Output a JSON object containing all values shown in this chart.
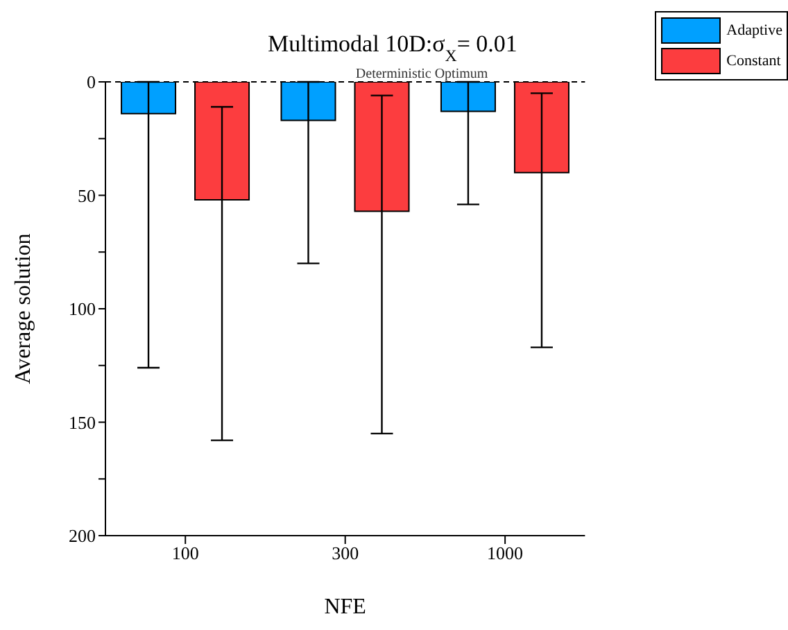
{
  "chart_data": {
    "type": "bar",
    "title": "Multimodal 10D:σ$_{X}$= 0.01",
    "xlabel": "NFE",
    "ylabel": "Average solution",
    "categories": [
      "100",
      "300",
      "1000"
    ],
    "series": [
      {
        "name": "Adaptive",
        "color": "#00a0ff",
        "values": [
          14,
          17,
          13
        ],
        "errors": [
          [
            0,
            126
          ],
          [
            0,
            80
          ],
          [
            0,
            54
          ]
        ]
      },
      {
        "name": "Constant",
        "color": "#fc3d3f",
        "values": [
          52,
          57,
          40
        ],
        "errors": [
          [
            11,
            158
          ],
          [
            6,
            155
          ],
          [
            5,
            117
          ]
        ]
      }
    ],
    "ylim": [
      200,
      0
    ],
    "yticks": [
      0,
      {
        "value": 25,
        "label": null
      },
      50,
      {
        "value": 75,
        "label": null
      },
      100,
      {
        "value": 125,
        "label": null
      },
      150,
      {
        "value": 175,
        "label": null
      },
      200
    ],
    "ref_lines": [
      {
        "axis": "y",
        "value": 0,
        "label": "Deterministic Optimum",
        "line_style": "dashed",
        "color": "#000000"
      }
    ],
    "grid": false,
    "legend": "top right"
  }
}
